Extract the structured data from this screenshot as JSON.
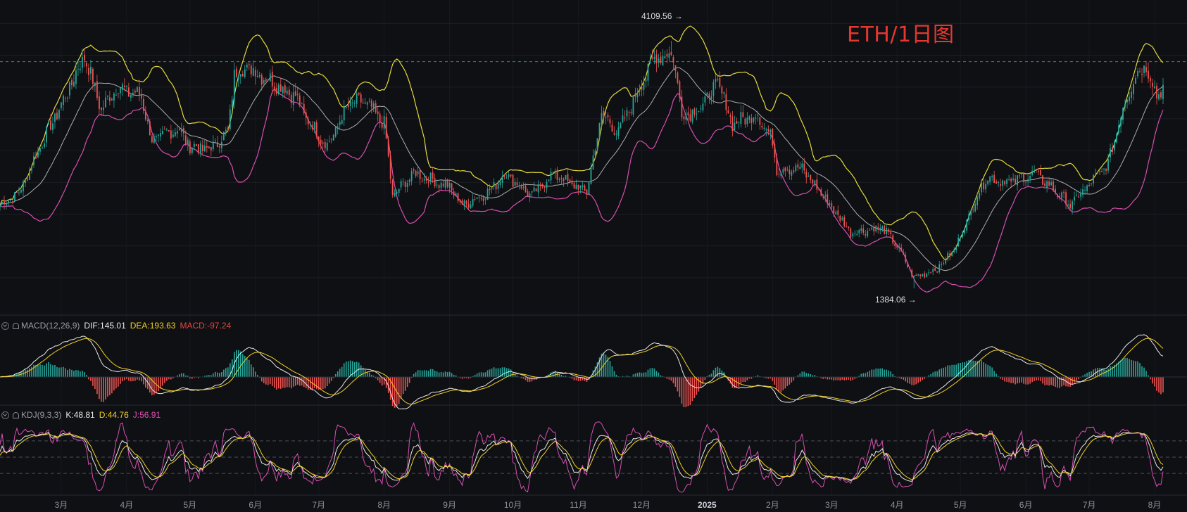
{
  "title": "ETH/1日图",
  "colors": {
    "background": "#0f1014",
    "up": "#26a69a",
    "down": "#ef5350",
    "bb_upper": "#e5d93a",
    "bb_middle": "#c9c9c9",
    "bb_lower": "#d64fb0",
    "dif": "#e8e8e8",
    "dea": "#f2d024",
    "j_line": "#d64fb0",
    "reference_line": "#3aa3a3"
  },
  "icons": [
    "collapse-chevron-icon",
    "bell-icon"
  ],
  "annotations": {
    "high_label": "4109.56",
    "low_label": "1384.06"
  },
  "macd_header": {
    "name": "MACD(12,26,9)",
    "dif_label": "DIF:145.01",
    "dea_label": "DEA:193.63",
    "macd_label": "MACD:-97.24"
  },
  "kdj_header": {
    "name": "KDJ(9,3,3)",
    "k_label": "K:48.81",
    "d_label": "D:44.76",
    "j_label": "J:56.91"
  },
  "chart_data": [
    {
      "type": "candlestick",
      "title": "ETH/1日图",
      "x_start": "2024-02-01",
      "x_end": "2025-08-05",
      "interval": "1d",
      "x_ticks": [
        "3月",
        "4月",
        "5月",
        "6月",
        "7月",
        "8月",
        "9月",
        "10月",
        "11月",
        "12月",
        "2025",
        "2月",
        "3月",
        "4月",
        "5月",
        "6月",
        "7月",
        "8月"
      ],
      "y_range_estimated": [
        1150,
        4450
      ],
      "grid": true,
      "reference_line_value_estimated": 3880,
      "extremes": {
        "high": 4109.56,
        "low": 1384.06
      },
      "price_anchors_estimated": [
        [
          "2024-02-01",
          2300
        ],
        [
          "2024-02-10",
          2430
        ],
        [
          "2024-02-20",
          2950
        ],
        [
          "2024-03-01",
          3400
        ],
        [
          "2024-03-12",
          3950
        ],
        [
          "2024-03-20",
          3350
        ],
        [
          "2024-03-27",
          3600
        ],
        [
          "2024-04-08",
          3500
        ],
        [
          "2024-04-13",
          3000
        ],
        [
          "2024-04-25",
          3150
        ],
        [
          "2024-05-01",
          2950
        ],
        [
          "2024-05-10",
          2910
        ],
        [
          "2024-05-19",
          3100
        ],
        [
          "2024-05-22",
          3750
        ],
        [
          "2024-05-28",
          3820
        ],
        [
          "2024-06-10",
          3650
        ],
        [
          "2024-06-20",
          3500
        ],
        [
          "2024-06-24",
          3300
        ],
        [
          "2024-07-05",
          2950
        ],
        [
          "2024-07-15",
          3400
        ],
        [
          "2024-07-22",
          3450
        ],
        [
          "2024-08-01",
          3200
        ],
        [
          "2024-08-05",
          2400
        ],
        [
          "2024-08-15",
          2650
        ],
        [
          "2024-09-01",
          2500
        ],
        [
          "2024-09-07",
          2300
        ],
        [
          "2024-09-20",
          2450
        ],
        [
          "2024-09-27",
          2650
        ],
        [
          "2024-10-10",
          2400
        ],
        [
          "2024-10-20",
          2650
        ],
        [
          "2024-10-31",
          2500
        ],
        [
          "2024-11-05",
          2450
        ],
        [
          "2024-11-12",
          3300
        ],
        [
          "2024-11-20",
          3100
        ],
        [
          "2024-12-01",
          3650
        ],
        [
          "2024-12-08",
          3950
        ],
        [
          "2024-12-16",
          3950
        ],
        [
          "2024-12-20",
          3300
        ],
        [
          "2024-12-28",
          3350
        ],
        [
          "2025-01-06",
          3650
        ],
        [
          "2025-01-13",
          3200
        ],
        [
          "2025-01-25",
          3300
        ],
        [
          "2025-02-01",
          3000
        ],
        [
          "2025-02-03",
          2700
        ],
        [
          "2025-02-15",
          2700
        ],
        [
          "2025-02-25",
          2400
        ],
        [
          "2025-03-10",
          2000
        ],
        [
          "2025-03-25",
          2050
        ],
        [
          "2025-04-01",
          1850
        ],
        [
          "2025-04-09",
          1500
        ],
        [
          "2025-04-20",
          1600
        ],
        [
          "2025-04-28",
          1800
        ],
        [
          "2025-05-09",
          2400
        ],
        [
          "2025-05-13",
          2600
        ],
        [
          "2025-05-25",
          2550
        ],
        [
          "2025-06-05",
          2650
        ],
        [
          "2025-06-13",
          2500
        ],
        [
          "2025-06-22",
          2300
        ],
        [
          "2025-06-30",
          2500
        ],
        [
          "2025-07-10",
          2750
        ],
        [
          "2025-07-16",
          3300
        ],
        [
          "2025-07-22",
          3700
        ],
        [
          "2025-07-28",
          3850
        ],
        [
          "2025-08-02",
          3500
        ],
        [
          "2025-08-05",
          3620
        ]
      ],
      "bollinger_bands": {
        "period": 20,
        "multiplier": 2,
        "series": [
          "upper",
          "middle",
          "lower"
        ]
      }
    },
    {
      "type": "bar+line",
      "name": "MACD(12,26,9)",
      "series": [
        "DIF",
        "DEA",
        "MACD"
      ],
      "last": {
        "DIF": 145.01,
        "DEA": 193.63,
        "MACD": -97.24
      }
    },
    {
      "type": "line",
      "name": "KDJ(9,3,3)",
      "series": [
        "K",
        "D",
        "J"
      ],
      "last": {
        "K": 48.81,
        "D": 44.76,
        "J": 56.91
      },
      "reference_levels": [
        20,
        50,
        80
      ]
    }
  ]
}
